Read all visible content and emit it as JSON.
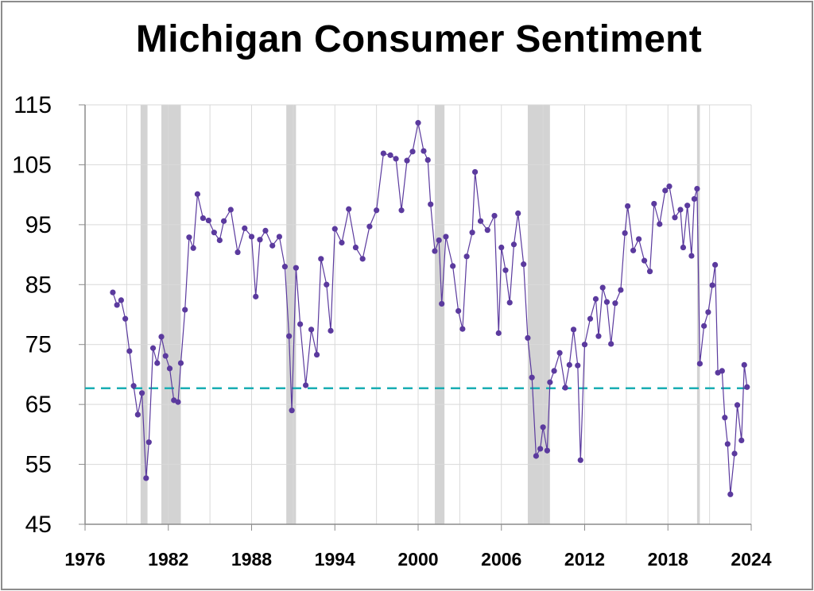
{
  "chart_data": {
    "type": "line",
    "title": "Michigan Consumer Sentiment",
    "xlabel": "",
    "ylabel": "",
    "xlim": [
      1976,
      2024
    ],
    "ylim": [
      45,
      115
    ],
    "x_ticks": [
      "1976",
      "1982",
      "1988",
      "1994",
      "2000",
      "2006",
      "2012",
      "2018",
      "2024"
    ],
    "y_ticks": [
      "115",
      "105",
      "95",
      "85",
      "75",
      "65",
      "55",
      "45"
    ],
    "grid": true,
    "legend": "none",
    "series": [
      {
        "color": "#5b3a9e",
        "marker": "circle",
        "points": [
          [
            1978.0,
            83.7
          ],
          [
            1978.3,
            81.6
          ],
          [
            1978.6,
            82.4
          ],
          [
            1978.9,
            79.3
          ],
          [
            1979.2,
            73.9
          ],
          [
            1979.5,
            68.1
          ],
          [
            1979.8,
            63.3
          ],
          [
            1980.1,
            66.9
          ],
          [
            1980.4,
            52.7
          ],
          [
            1980.6,
            58.7
          ],
          [
            1980.9,
            74.4
          ],
          [
            1981.2,
            71.9
          ],
          [
            1981.5,
            76.3
          ],
          [
            1981.8,
            73.1
          ],
          [
            1982.1,
            71.0
          ],
          [
            1982.4,
            65.7
          ],
          [
            1982.7,
            65.4
          ],
          [
            1982.9,
            71.9
          ],
          [
            1983.2,
            80.8
          ],
          [
            1983.5,
            92.9
          ],
          [
            1983.8,
            91.1
          ],
          [
            1984.1,
            100.1
          ],
          [
            1984.5,
            96.1
          ],
          [
            1984.9,
            95.7
          ],
          [
            1985.3,
            93.7
          ],
          [
            1985.7,
            92.4
          ],
          [
            1986.0,
            95.6
          ],
          [
            1986.5,
            97.5
          ],
          [
            1987.0,
            90.4
          ],
          [
            1987.5,
            94.4
          ],
          [
            1988.0,
            93.0
          ],
          [
            1988.3,
            83.0
          ],
          [
            1988.6,
            92.5
          ],
          [
            1989.0,
            94.0
          ],
          [
            1989.5,
            91.5
          ],
          [
            1990.0,
            93.0
          ],
          [
            1990.4,
            88.0
          ],
          [
            1990.7,
            76.4
          ],
          [
            1990.9,
            64.0
          ],
          [
            1991.2,
            87.8
          ],
          [
            1991.5,
            78.4
          ],
          [
            1991.9,
            68.2
          ],
          [
            1992.3,
            77.5
          ],
          [
            1992.7,
            73.3
          ],
          [
            1993.0,
            89.3
          ],
          [
            1993.4,
            85.0
          ],
          [
            1993.7,
            77.3
          ],
          [
            1994.0,
            94.3
          ],
          [
            1994.5,
            92.0
          ],
          [
            1995.0,
            97.6
          ],
          [
            1995.5,
            91.2
          ],
          [
            1996.0,
            89.3
          ],
          [
            1996.5,
            94.7
          ],
          [
            1997.0,
            97.4
          ],
          [
            1997.5,
            106.9
          ],
          [
            1998.0,
            106.6
          ],
          [
            1998.4,
            106.0
          ],
          [
            1998.8,
            97.4
          ],
          [
            1999.2,
            105.7
          ],
          [
            1999.6,
            107.2
          ],
          [
            2000.0,
            112.0
          ],
          [
            2000.4,
            107.3
          ],
          [
            2000.7,
            105.8
          ],
          [
            2000.9,
            98.4
          ],
          [
            2001.2,
            90.6
          ],
          [
            2001.5,
            92.4
          ],
          [
            2001.7,
            81.8
          ],
          [
            2002.0,
            93.0
          ],
          [
            2002.5,
            88.1
          ],
          [
            2002.9,
            80.6
          ],
          [
            2003.2,
            77.6
          ],
          [
            2003.5,
            89.7
          ],
          [
            2003.9,
            93.7
          ],
          [
            2004.1,
            103.8
          ],
          [
            2004.5,
            95.6
          ],
          [
            2005.0,
            94.1
          ],
          [
            2005.5,
            96.5
          ],
          [
            2005.8,
            76.9
          ],
          [
            2006.0,
            91.2
          ],
          [
            2006.3,
            87.4
          ],
          [
            2006.6,
            82.0
          ],
          [
            2006.9,
            91.7
          ],
          [
            2007.2,
            96.9
          ],
          [
            2007.6,
            88.4
          ],
          [
            2007.9,
            76.1
          ],
          [
            2008.2,
            69.5
          ],
          [
            2008.5,
            56.4
          ],
          [
            2008.8,
            57.6
          ],
          [
            2009.0,
            61.2
          ],
          [
            2009.3,
            57.3
          ],
          [
            2009.5,
            68.7
          ],
          [
            2009.8,
            70.6
          ],
          [
            2010.2,
            73.6
          ],
          [
            2010.6,
            67.8
          ],
          [
            2010.9,
            71.6
          ],
          [
            2011.2,
            77.5
          ],
          [
            2011.5,
            71.5
          ],
          [
            2011.7,
            55.7
          ],
          [
            2012.0,
            75.0
          ],
          [
            2012.4,
            79.3
          ],
          [
            2012.8,
            82.6
          ],
          [
            2013.0,
            76.4
          ],
          [
            2013.3,
            84.5
          ],
          [
            2013.6,
            82.1
          ],
          [
            2013.9,
            75.1
          ],
          [
            2014.2,
            81.9
          ],
          [
            2014.6,
            84.1
          ],
          [
            2014.9,
            93.6
          ],
          [
            2015.1,
            98.1
          ],
          [
            2015.5,
            90.7
          ],
          [
            2015.9,
            92.6
          ],
          [
            2016.3,
            89.0
          ],
          [
            2016.7,
            87.2
          ],
          [
            2017.0,
            98.5
          ],
          [
            2017.4,
            95.1
          ],
          [
            2017.8,
            100.7
          ],
          [
            2018.1,
            101.4
          ],
          [
            2018.5,
            96.2
          ],
          [
            2018.9,
            97.5
          ],
          [
            2019.1,
            91.2
          ],
          [
            2019.4,
            98.2
          ],
          [
            2019.7,
            89.8
          ],
          [
            2019.9,
            99.3
          ],
          [
            2020.1,
            101.0
          ],
          [
            2020.3,
            71.8
          ],
          [
            2020.6,
            78.1
          ],
          [
            2020.9,
            80.4
          ],
          [
            2021.2,
            84.9
          ],
          [
            2021.4,
            88.3
          ],
          [
            2021.6,
            70.3
          ],
          [
            2021.9,
            70.6
          ],
          [
            2022.1,
            62.8
          ],
          [
            2022.3,
            58.4
          ],
          [
            2022.5,
            50.0
          ],
          [
            2022.8,
            56.8
          ],
          [
            2023.0,
            64.9
          ],
          [
            2023.3,
            59.0
          ],
          [
            2023.5,
            71.6
          ],
          [
            2023.7,
            67.9
          ]
        ]
      }
    ],
    "reference_line": {
      "y": 67.7,
      "color": "#1aaeb3",
      "style": "dashed"
    },
    "recessions": [
      [
        1980.0,
        1980.5
      ],
      [
        1981.5,
        1982.9
      ],
      [
        1990.5,
        1991.2
      ],
      [
        2001.2,
        2001.9
      ],
      [
        2007.9,
        2009.5
      ],
      [
        2020.1,
        2020.3
      ]
    ],
    "recession_color": "#d3d3d3"
  }
}
